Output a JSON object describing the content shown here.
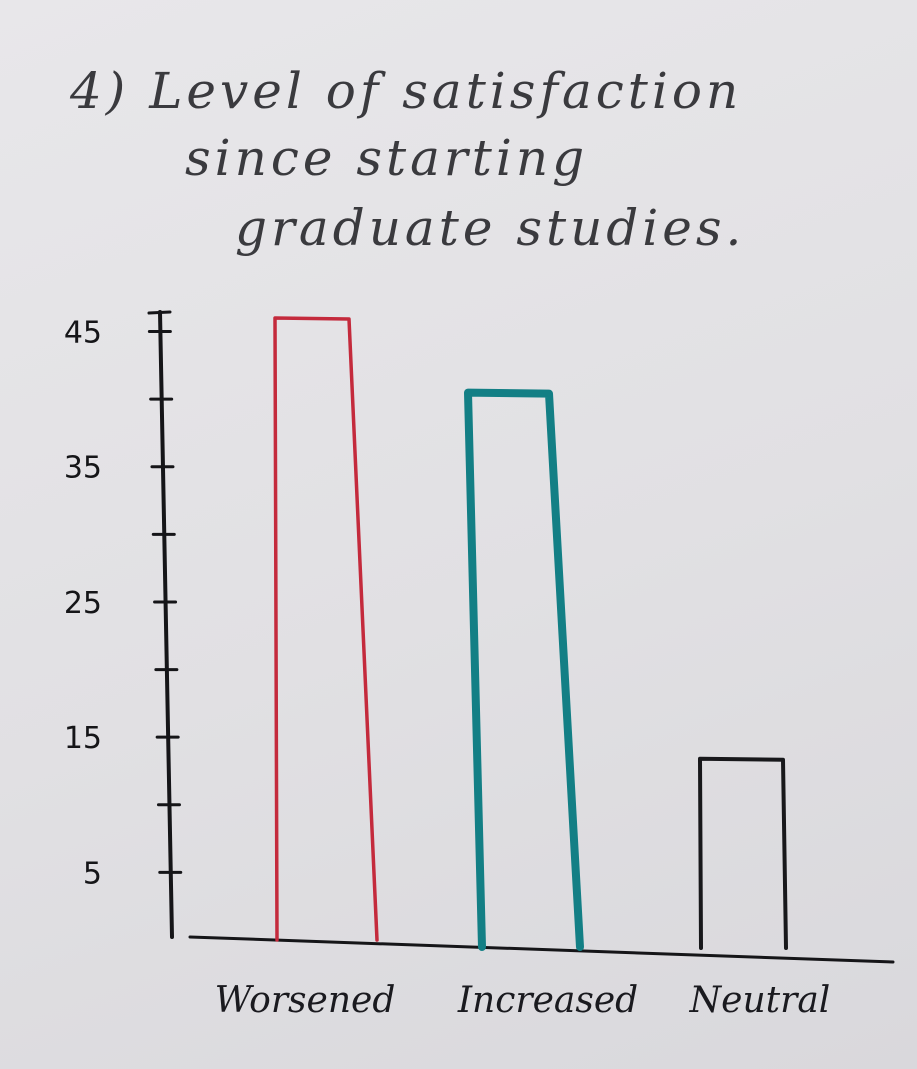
{
  "chart_data": {
    "type": "bar",
    "title_lines": [
      "4) Level of satisfaction",
      "since starting",
      "graduate studies."
    ],
    "categories": [
      "Worsened",
      "Increased",
      "Neutral"
    ],
    "values": [
      46,
      41,
      14
    ],
    "ylim": [
      0,
      46
    ],
    "yticks": [
      5,
      10,
      15,
      20,
      25,
      30,
      35,
      40,
      45
    ],
    "ytick_labels": [
      "5",
      "",
      "15",
      "",
      "25",
      "",
      "35",
      "",
      "45"
    ],
    "bar_colors": [
      "#c42a3c",
      "#137f85",
      "#18181b"
    ],
    "grid": false,
    "xlabel": "",
    "ylabel": ""
  }
}
